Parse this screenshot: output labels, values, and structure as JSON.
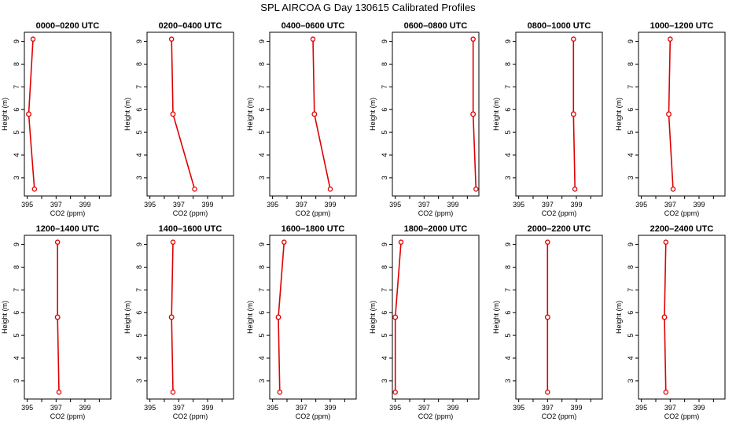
{
  "figure": {
    "title": "SPL AIRCOA G  Day 130615  Calibrated Profiles"
  },
  "chart_data": [
    {
      "type": "line",
      "title": "0000–0200 UTC",
      "xlabel": "CO2 (ppm)",
      "ylabel": "Height (m)",
      "xlim": [
        394.8,
        400.8
      ],
      "ylim": [
        2.2,
        9.4
      ],
      "x_ticks": [
        "395",
        "397",
        "399"
      ],
      "y_ticks": [
        "3",
        "4",
        "5",
        "6",
        "7",
        "8",
        "9"
      ],
      "series": [
        {
          "x": [
            395.5,
            395.1,
            395.4
          ],
          "y": [
            2.5,
            5.8,
            9.1
          ]
        }
      ]
    },
    {
      "type": "line",
      "title": "0200–0400 UTC",
      "xlabel": "CO2 (ppm)",
      "ylabel": "Height (m)",
      "xlim": [
        394.8,
        400.8
      ],
      "ylim": [
        2.2,
        9.4
      ],
      "x_ticks": [
        "395",
        "397",
        "399"
      ],
      "y_ticks": [
        "3",
        "4",
        "5",
        "6",
        "7",
        "8",
        "9"
      ],
      "series": [
        {
          "x": [
            398.1,
            396.6,
            396.5
          ],
          "y": [
            2.5,
            5.8,
            9.1
          ]
        }
      ]
    },
    {
      "type": "line",
      "title": "0400–0600 UTC",
      "xlabel": "CO2 (ppm)",
      "ylabel": "Height (m)",
      "xlim": [
        394.8,
        400.8
      ],
      "ylim": [
        2.2,
        9.4
      ],
      "x_ticks": [
        "395",
        "397",
        "399"
      ],
      "y_ticks": [
        "3",
        "4",
        "5",
        "6",
        "7",
        "8",
        "9"
      ],
      "series": [
        {
          "x": [
            399.0,
            397.9,
            397.8
          ],
          "y": [
            2.5,
            5.8,
            9.1
          ]
        }
      ]
    },
    {
      "type": "line",
      "title": "0600–0800 UTC",
      "xlabel": "CO2 (ppm)",
      "ylabel": "Height (m)",
      "xlim": [
        394.8,
        400.8
      ],
      "ylim": [
        2.2,
        9.4
      ],
      "x_ticks": [
        "395",
        "397",
        "399"
      ],
      "y_ticks": [
        "3",
        "4",
        "5",
        "6",
        "7",
        "8",
        "9"
      ],
      "series": [
        {
          "x": [
            400.6,
            400.4,
            400.4
          ],
          "y": [
            2.5,
            5.8,
            9.1
          ]
        }
      ]
    },
    {
      "type": "line",
      "title": "0800–1000 UTC",
      "xlabel": "CO2 (ppm)",
      "ylabel": "Height (m)",
      "xlim": [
        394.8,
        400.8
      ],
      "ylim": [
        2.2,
        9.4
      ],
      "x_ticks": [
        "395",
        "397",
        "399"
      ],
      "y_ticks": [
        "3",
        "4",
        "5",
        "6",
        "7",
        "8",
        "9"
      ],
      "series": [
        {
          "x": [
            398.9,
            398.8,
            398.8
          ],
          "y": [
            2.5,
            5.8,
            9.1
          ]
        }
      ]
    },
    {
      "type": "line",
      "title": "1000–1200 UTC",
      "xlabel": "CO2 (ppm)",
      "ylabel": "Height (m)",
      "xlim": [
        394.8,
        400.8
      ],
      "ylim": [
        2.2,
        9.4
      ],
      "x_ticks": [
        "395",
        "397",
        "399"
      ],
      "y_ticks": [
        "3",
        "4",
        "5",
        "6",
        "7",
        "8",
        "9"
      ],
      "series": [
        {
          "x": [
            397.2,
            396.9,
            397.0
          ],
          "y": [
            2.5,
            5.8,
            9.1
          ]
        }
      ]
    },
    {
      "type": "line",
      "title": "1200–1400 UTC",
      "xlabel": "CO2 (ppm)",
      "ylabel": "Height (m)",
      "xlim": [
        394.8,
        400.8
      ],
      "ylim": [
        2.2,
        9.4
      ],
      "x_ticks": [
        "395",
        "397",
        "399"
      ],
      "y_ticks": [
        "3",
        "4",
        "5",
        "6",
        "7",
        "8",
        "9"
      ],
      "series": [
        {
          "x": [
            397.2,
            397.1,
            397.1
          ],
          "y": [
            2.5,
            5.8,
            9.1
          ]
        }
      ]
    },
    {
      "type": "line",
      "title": "1400–1600 UTC",
      "xlabel": "CO2 (ppm)",
      "ylabel": "Height (m)",
      "xlim": [
        394.8,
        400.8
      ],
      "ylim": [
        2.2,
        9.4
      ],
      "x_ticks": [
        "395",
        "397",
        "399"
      ],
      "y_ticks": [
        "3",
        "4",
        "5",
        "6",
        "7",
        "8",
        "9"
      ],
      "series": [
        {
          "x": [
            396.6,
            396.5,
            396.6
          ],
          "y": [
            2.5,
            5.8,
            9.1
          ]
        }
      ]
    },
    {
      "type": "line",
      "title": "1600–1800 UTC",
      "xlabel": "CO2 (ppm)",
      "ylabel": "Height (m)",
      "xlim": [
        394.8,
        400.8
      ],
      "ylim": [
        2.2,
        9.4
      ],
      "x_ticks": [
        "395",
        "397",
        "399"
      ],
      "y_ticks": [
        "3",
        "4",
        "5",
        "6",
        "7",
        "8",
        "9"
      ],
      "series": [
        {
          "x": [
            395.5,
            395.4,
            395.8
          ],
          "y": [
            2.5,
            5.8,
            9.1
          ]
        }
      ]
    },
    {
      "type": "line",
      "title": "1800–2000 UTC",
      "xlabel": "CO2 (ppm)",
      "ylabel": "Height (m)",
      "xlim": [
        394.8,
        400.8
      ],
      "ylim": [
        2.2,
        9.4
      ],
      "x_ticks": [
        "395",
        "397",
        "399"
      ],
      "y_ticks": [
        "3",
        "4",
        "5",
        "6",
        "7",
        "8",
        "9"
      ],
      "series": [
        {
          "x": [
            395.0,
            395.0,
            395.4
          ],
          "y": [
            2.5,
            5.8,
            9.1
          ]
        }
      ]
    },
    {
      "type": "line",
      "title": "2000–2200 UTC",
      "xlabel": "CO2 (ppm)",
      "ylabel": "Height (m)",
      "xlim": [
        394.8,
        400.8
      ],
      "ylim": [
        2.2,
        9.4
      ],
      "x_ticks": [
        "395",
        "397",
        "399"
      ],
      "y_ticks": [
        "3",
        "4",
        "5",
        "6",
        "7",
        "8",
        "9"
      ],
      "series": [
        {
          "x": [
            397.0,
            397.0,
            397.0
          ],
          "y": [
            2.5,
            5.8,
            9.1
          ]
        }
      ]
    },
    {
      "type": "line",
      "title": "2200–2400 UTC",
      "xlabel": "CO2 (ppm)",
      "ylabel": "Height (m)",
      "xlim": [
        394.8,
        400.8
      ],
      "ylim": [
        2.2,
        9.4
      ],
      "x_ticks": [
        "395",
        "397",
        "399"
      ],
      "y_ticks": [
        "3",
        "4",
        "5",
        "6",
        "7",
        "8",
        "9"
      ],
      "series": [
        {
          "x": [
            396.7,
            396.6,
            396.7
          ],
          "y": [
            2.5,
            5.8,
            9.1
          ]
        }
      ]
    }
  ],
  "style": {
    "line_color": "#e00000",
    "marker_color": "#e00000",
    "axis_color": "#000000",
    "background": "#ffffff"
  }
}
